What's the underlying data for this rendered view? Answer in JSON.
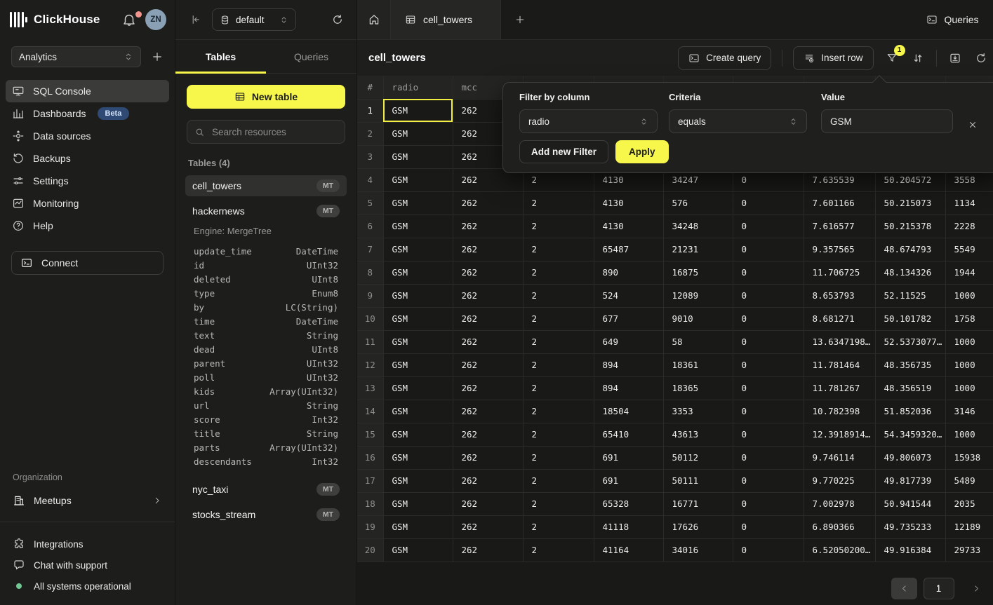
{
  "brand": {
    "name": "ClickHouse",
    "avatar": "ZN"
  },
  "colors": {
    "accent_yellow": "#f7f64a",
    "beta_badge_blue": "#2f4a75",
    "status_green": "#72c894",
    "notification_red": "#f2958f",
    "selected_cell_yellow": "#f1ee44"
  },
  "sidebar": {
    "workspace": "Analytics",
    "nav": [
      {
        "label": "SQL Console",
        "icon": "console",
        "active": true
      },
      {
        "label": "Dashboards",
        "icon": "dashboards",
        "badge": "Beta"
      },
      {
        "label": "Data sources",
        "icon": "data-sources"
      },
      {
        "label": "Backups",
        "icon": "backups"
      },
      {
        "label": "Settings",
        "icon": "settings"
      },
      {
        "label": "Monitoring",
        "icon": "monitoring"
      },
      {
        "label": "Help",
        "icon": "help"
      }
    ],
    "connect": "Connect",
    "org_label": "Organization",
    "org_items": [
      {
        "label": "Meetups",
        "icon": "meetups"
      }
    ],
    "footer": [
      {
        "label": "Integrations",
        "icon": "integrations"
      },
      {
        "label": "Chat with support",
        "icon": "chat"
      },
      {
        "label": "All systems operational",
        "icon": "status-dot"
      }
    ]
  },
  "explorer": {
    "database": "default",
    "tabs": [
      {
        "label": "Tables",
        "active": true
      },
      {
        "label": "Queries",
        "active": false
      }
    ],
    "new_table": "New table",
    "search_placeholder": "Search resources",
    "section": "Tables (4)",
    "engine": "Engine: MergeTree",
    "tables": [
      {
        "name": "cell_towers",
        "badge": "MT",
        "state": "selected"
      },
      {
        "name": "hackernews",
        "badge": "MT",
        "state": "expanded"
      },
      {
        "name": "nyc_taxi",
        "badge": "MT",
        "state": ""
      },
      {
        "name": "stocks_stream",
        "badge": "MT",
        "state": ""
      }
    ],
    "schema": [
      [
        "update_time",
        "DateTime"
      ],
      [
        "id",
        "UInt32"
      ],
      [
        "deleted",
        "UInt8"
      ],
      [
        "type",
        "Enum8"
      ],
      [
        "by",
        "LC(String)"
      ],
      [
        "time",
        "DateTime"
      ],
      [
        "text",
        "String"
      ],
      [
        "dead",
        "UInt8"
      ],
      [
        "parent",
        "UInt32"
      ],
      [
        "poll",
        "UInt32"
      ],
      [
        "kids",
        "Array(UInt32)"
      ],
      [
        "url",
        "String"
      ],
      [
        "score",
        "Int32"
      ],
      [
        "title",
        "String"
      ],
      [
        "parts",
        "Array(UInt32)"
      ],
      [
        "descendants",
        "Int32"
      ]
    ]
  },
  "main": {
    "queries_button": "Queries",
    "tab_label": "cell_towers",
    "title": "cell_towers",
    "toolbar": {
      "create_query": "Create query",
      "insert_row": "Insert row",
      "filter_badge": "1"
    },
    "grid": {
      "columns": [
        "#",
        "radio",
        "mcc",
        "",
        "",
        "",
        "",
        "",
        "",
        ""
      ],
      "selected_cell": {
        "row": 0,
        "col": 1
      },
      "rows": [
        [
          "1",
          "GSM",
          "262",
          "",
          "",
          "",
          "",
          "",
          "",
          ""
        ],
        [
          "2",
          "GSM",
          "262",
          "",
          "",
          "",
          "",
          "",
          "",
          ""
        ],
        [
          "3",
          "GSM",
          "262",
          "",
          "",
          "",
          "",
          "",
          "",
          ""
        ],
        [
          "4",
          "GSM",
          "262",
          "2",
          "4130",
          "34247",
          "0",
          "7.635539",
          "50.204572",
          "3558"
        ],
        [
          "5",
          "GSM",
          "262",
          "2",
          "4130",
          "576",
          "0",
          "7.601166",
          "50.215073",
          "1134"
        ],
        [
          "6",
          "GSM",
          "262",
          "2",
          "4130",
          "34248",
          "0",
          "7.616577",
          "50.215378",
          "2228"
        ],
        [
          "7",
          "GSM",
          "262",
          "2",
          "65487",
          "21231",
          "0",
          "9.357565",
          "48.674793",
          "5549"
        ],
        [
          "8",
          "GSM",
          "262",
          "2",
          "890",
          "16875",
          "0",
          "11.706725",
          "48.134326",
          "1944"
        ],
        [
          "9",
          "GSM",
          "262",
          "2",
          "524",
          "12089",
          "0",
          "8.653793",
          "52.11525",
          "1000"
        ],
        [
          "10",
          "GSM",
          "262",
          "2",
          "677",
          "9010",
          "0",
          "8.681271",
          "50.101782",
          "1758"
        ],
        [
          "11",
          "GSM",
          "262",
          "2",
          "649",
          "58",
          "0",
          "13.6347198…",
          "52.5373077…",
          "1000"
        ],
        [
          "12",
          "GSM",
          "262",
          "2",
          "894",
          "18361",
          "0",
          "11.781464",
          "48.356735",
          "1000"
        ],
        [
          "13",
          "GSM",
          "262",
          "2",
          "894",
          "18365",
          "0",
          "11.781267",
          "48.356519",
          "1000"
        ],
        [
          "14",
          "GSM",
          "262",
          "2",
          "18504",
          "3353",
          "0",
          "10.782398",
          "51.852036",
          "3146"
        ],
        [
          "15",
          "GSM",
          "262",
          "2",
          "65410",
          "43613",
          "0",
          "12.3918914…",
          "54.3459320…",
          "1000"
        ],
        [
          "16",
          "GSM",
          "262",
          "2",
          "691",
          "50112",
          "0",
          "9.746114",
          "49.806073",
          "15938"
        ],
        [
          "17",
          "GSM",
          "262",
          "2",
          "691",
          "50111",
          "0",
          "9.770225",
          "49.817739",
          "5489"
        ],
        [
          "18",
          "GSM",
          "262",
          "2",
          "65328",
          "16771",
          "0",
          "7.002978",
          "50.941544",
          "2035"
        ],
        [
          "19",
          "GSM",
          "262",
          "2",
          "41118",
          "17626",
          "0",
          "6.890366",
          "49.735233",
          "12189"
        ],
        [
          "20",
          "GSM",
          "262",
          "2",
          "41164",
          "34016",
          "0",
          "6.52050200…",
          "49.916384",
          "29733"
        ]
      ]
    },
    "pagination": {
      "page": "1"
    }
  },
  "filter_popup": {
    "fields": [
      {
        "label": "Filter by column",
        "value": "radio",
        "type": "select"
      },
      {
        "label": "Criteria",
        "value": "equals",
        "type": "select"
      },
      {
        "label": "Value",
        "value": "GSM",
        "type": "input"
      }
    ],
    "add_filter": "Add new Filter",
    "apply": "Apply"
  }
}
